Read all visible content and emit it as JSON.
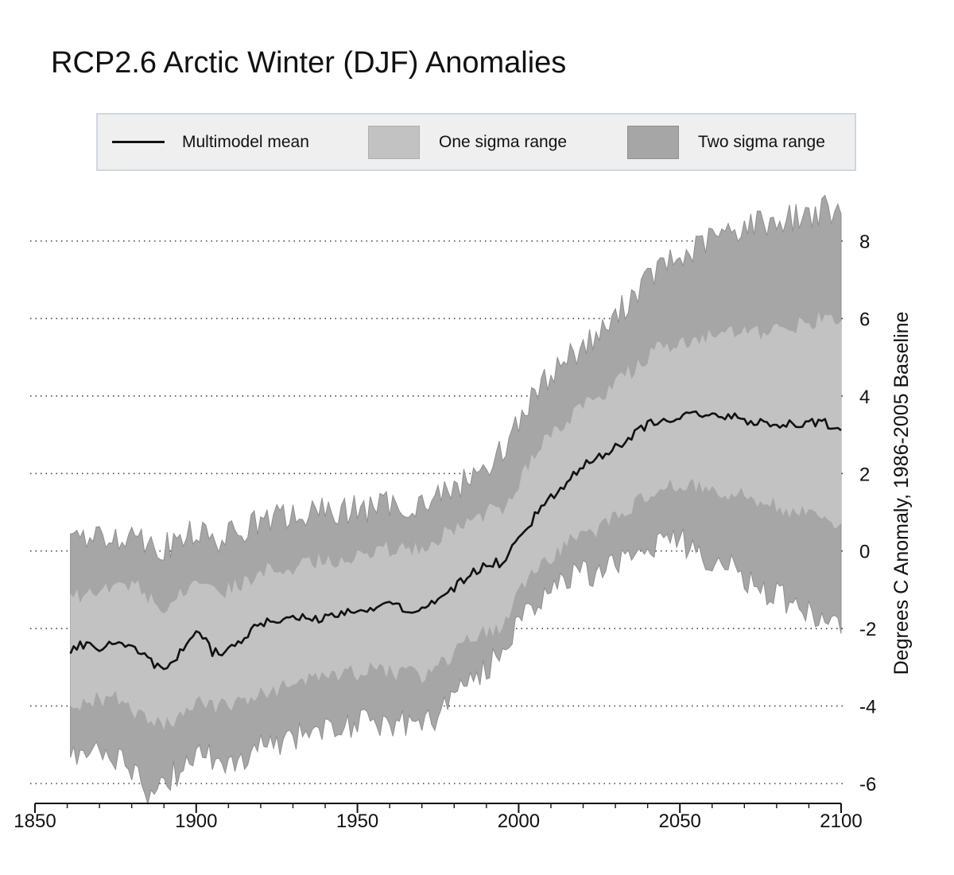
{
  "chart_data": {
    "type": "area",
    "title": "RCP2.6 Arctic Winter (DJF) Anomalies",
    "xlabel": "",
    "ylabel": "Degrees C Anomaly, 1986-2005 Baseline",
    "xlim": [
      1850,
      2100
    ],
    "ylim": [
      -6.0,
      9.5
    ],
    "x_ticks": [
      "1850",
      "1900",
      "1950",
      "2000",
      "2050",
      "2100"
    ],
    "y_ticks": [
      "8",
      "6",
      "4",
      "2",
      "0",
      "-2",
      "-4",
      "-6"
    ],
    "grid": "horizontal dotted",
    "legend": {
      "placement": "top",
      "entries": [
        "Multimodel mean",
        "One sigma range",
        "Two sigma range"
      ]
    },
    "colors": {
      "mean": "#111111",
      "one_sigma": "#c2c2c2",
      "two_sigma": "#a6a6a6",
      "two_sigma_edge": "#8f8f8f"
    },
    "x": [
      1861,
      1865,
      1870,
      1875,
      1880,
      1885,
      1890,
      1895,
      1900,
      1905,
      1910,
      1915,
      1920,
      1925,
      1930,
      1935,
      1940,
      1945,
      1950,
      1955,
      1960,
      1965,
      1970,
      1975,
      1980,
      1985,
      1990,
      1995,
      2000,
      2005,
      2010,
      2015,
      2020,
      2025,
      2030,
      2035,
      2040,
      2045,
      2050,
      2055,
      2060,
      2065,
      2070,
      2075,
      2080,
      2085,
      2090,
      2095,
      2100
    ],
    "series": [
      {
        "name": "Multimodel mean",
        "values": [
          -2.6,
          -2.4,
          -2.5,
          -2.3,
          -2.4,
          -2.8,
          -3.1,
          -2.6,
          -2.0,
          -2.6,
          -2.6,
          -2.2,
          -1.9,
          -1.8,
          -1.7,
          -1.7,
          -1.75,
          -1.6,
          -1.45,
          -1.45,
          -1.4,
          -1.5,
          -1.55,
          -1.2,
          -0.95,
          -0.6,
          -0.3,
          -0.3,
          0.3,
          0.9,
          1.4,
          1.8,
          2.2,
          2.4,
          2.65,
          2.95,
          3.25,
          3.45,
          3.4,
          3.6,
          3.5,
          3.5,
          3.35,
          3.35,
          3.3,
          3.25,
          3.35,
          3.3,
          3.15
        ]
      },
      {
        "name": "One sigma range",
        "lower": [
          -4.0,
          -3.9,
          -3.8,
          -3.8,
          -4.2,
          -4.4,
          -4.5,
          -4.3,
          -3.9,
          -4.0,
          -4.0,
          -3.9,
          -3.65,
          -3.6,
          -3.4,
          -3.35,
          -3.3,
          -3.15,
          -3.15,
          -3.05,
          -3.1,
          -3.15,
          -3.25,
          -2.95,
          -2.65,
          -2.25,
          -2.1,
          -1.9,
          -1.0,
          -0.5,
          -0.2,
          0.25,
          0.4,
          0.6,
          0.9,
          1.15,
          1.4,
          1.6,
          1.75,
          1.7,
          1.6,
          1.5,
          1.4,
          1.35,
          1.2,
          1.0,
          1.0,
          0.9,
          0.6
        ],
        "upper": [
          -1.3,
          -1.1,
          -1.05,
          -0.95,
          -0.8,
          -1.2,
          -1.4,
          -1.1,
          -0.7,
          -1.1,
          -1.0,
          -0.8,
          -0.55,
          -0.45,
          -0.4,
          -0.3,
          -0.25,
          -0.2,
          -0.1,
          0.0,
          0.05,
          0.05,
          0.1,
          0.35,
          0.55,
          0.75,
          1.0,
          1.15,
          1.8,
          2.5,
          3.0,
          3.4,
          3.7,
          4.0,
          4.3,
          4.65,
          5.05,
          5.3,
          5.3,
          5.5,
          5.5,
          5.6,
          5.6,
          5.6,
          5.7,
          5.8,
          5.9,
          6.0,
          5.9
        ]
      },
      {
        "name": "Two sigma range",
        "lower": [
          -5.3,
          -5.2,
          -5.1,
          -5.3,
          -5.6,
          -6.2,
          -5.9,
          -5.7,
          -5.2,
          -5.3,
          -5.6,
          -5.4,
          -5.0,
          -4.9,
          -4.8,
          -4.6,
          -4.6,
          -4.5,
          -4.5,
          -4.4,
          -4.4,
          -4.45,
          -4.5,
          -4.2,
          -3.7,
          -3.3,
          -3.1,
          -2.5,
          -1.8,
          -1.3,
          -1.0,
          -0.7,
          -0.6,
          -0.5,
          -0.3,
          -0.1,
          0.1,
          0.3,
          0.3,
          0.0,
          -0.2,
          -0.4,
          -0.7,
          -1.0,
          -1.1,
          -1.4,
          -1.6,
          -1.8,
          -2.0
        ],
        "upper": [
          0.2,
          0.35,
          0.3,
          0.4,
          0.5,
          0.25,
          0.1,
          0.25,
          0.55,
          0.2,
          0.4,
          0.6,
          0.75,
          0.85,
          0.9,
          0.95,
          1.0,
          1.05,
          1.1,
          1.1,
          1.2,
          1.2,
          1.25,
          1.4,
          1.6,
          1.9,
          2.2,
          2.6,
          3.4,
          4.0,
          4.6,
          5.0,
          5.3,
          5.6,
          6.0,
          6.6,
          7.0,
          7.4,
          7.5,
          7.8,
          8.1,
          8.2,
          8.4,
          8.5,
          8.5,
          8.6,
          8.7,
          8.8,
          8.6
        ]
      }
    ]
  }
}
